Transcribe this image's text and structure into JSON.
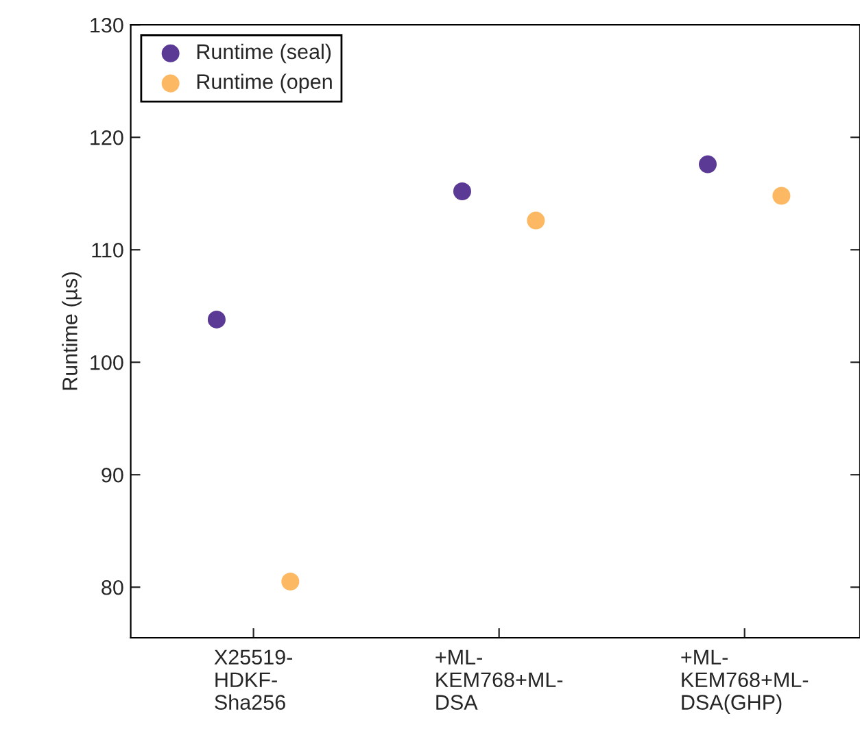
{
  "chart_data": {
    "type": "scatter",
    "ylabel": "Runtime (µs)",
    "categories": [
      "X25519-\nHDKF-\nSha256",
      "+ML-\nKEM768+ML-\nDSA",
      "+ML-\nKEM768+ML-\nDSA(GHP)"
    ],
    "series": [
      {
        "name": "Runtime (seal)",
        "color": "#5b3a96",
        "values": [
          103.8,
          115.2,
          117.6
        ]
      },
      {
        "name": "Runtime (open",
        "color": "#fdb863",
        "values": [
          80.5,
          112.6,
          114.8
        ]
      }
    ],
    "ylim": [
      75.5,
      130
    ],
    "yticks": [
      80,
      90,
      100,
      110,
      120,
      130
    ],
    "marker": "circle",
    "grid": false,
    "legend": "top left"
  }
}
